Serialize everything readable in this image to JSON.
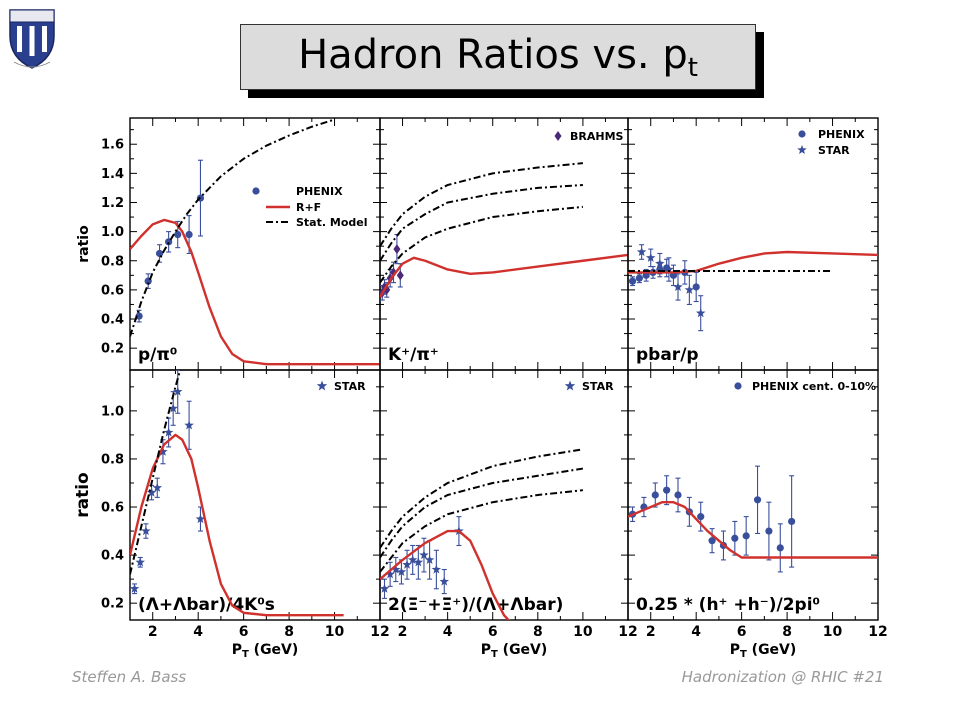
{
  "slide": {
    "title_main": "Hadron Ratios vs. p",
    "title_sub": "t",
    "footer_left": "Steffen A. Bass",
    "footer_right": "Hadronization @ RHIC  #21"
  },
  "colors": {
    "data_blue": "#3a4f9c",
    "rf_red": "#d0312d",
    "model_black": "#000000",
    "brahms_purple": "#4b2a7a",
    "title_bg": "#dcdcdc",
    "footer_gray": "#999999"
  },
  "chart_data": [
    {
      "type": "scatter",
      "panel_label": "p/π⁰",
      "ylabel": "ratio",
      "xlabel": "",
      "xlim": [
        1,
        12
      ],
      "ylim": [
        0.05,
        1.78
      ],
      "yticks": [
        0.2,
        0.4,
        0.6,
        0.8,
        1.0,
        1.2,
        1.4,
        1.6
      ],
      "legend": [
        "PHENIX",
        "R+F",
        "Stat. Model"
      ],
      "series": [
        {
          "name": "PHENIX",
          "marker": "circle",
          "x": [
            1.4,
            1.8,
            2.3,
            2.7,
            3.1,
            3.6,
            4.1
          ],
          "y": [
            0.42,
            0.66,
            0.85,
            0.93,
            0.98,
            0.98,
            1.23
          ],
          "err": [
            0.04,
            0.05,
            0.06,
            0.07,
            0.09,
            0.13,
            0.26
          ]
        },
        {
          "name": "R+F",
          "curve": true,
          "x": [
            1,
            1.5,
            2,
            2.5,
            3,
            3.3,
            3.7,
            4,
            4.5,
            5,
            5.5,
            6,
            7,
            8,
            10,
            12
          ],
          "y": [
            0.88,
            0.97,
            1.05,
            1.08,
            1.06,
            1.0,
            0.86,
            0.72,
            0.48,
            0.28,
            0.16,
            0.11,
            0.09,
            0.09,
            0.09,
            0.09
          ]
        },
        {
          "name": "Stat. Model",
          "curve": true,
          "x": [
            1,
            1.5,
            2,
            2.5,
            3,
            3.5,
            4,
            5,
            6,
            7,
            8,
            9,
            10
          ],
          "y": [
            0.28,
            0.52,
            0.72,
            0.87,
            1.0,
            1.12,
            1.22,
            1.38,
            1.5,
            1.59,
            1.66,
            1.72,
            1.77
          ]
        }
      ]
    },
    {
      "type": "scatter",
      "panel_label": "K⁺/π⁺",
      "xlabel": "",
      "xlim": [
        1,
        12
      ],
      "ylim": [
        0.05,
        1.78
      ],
      "legend": [
        "BRAHMS"
      ],
      "series": [
        {
          "name": "BRAHMS",
          "marker": "diamond",
          "x": [
            1.1,
            1.2,
            1.3,
            1.45,
            1.6,
            1.75,
            1.9
          ],
          "y": [
            0.58,
            0.62,
            0.6,
            0.68,
            0.72,
            0.88,
            0.7
          ],
          "err": [
            0.05,
            0.05,
            0.05,
            0.06,
            0.07,
            0.1,
            0.08
          ]
        },
        {
          "curve": true,
          "x": [
            1,
            1.5,
            2,
            2.5,
            3,
            4,
            5,
            6,
            8,
            10,
            12
          ],
          "y": [
            0.55,
            0.68,
            0.78,
            0.82,
            0.8,
            0.74,
            0.71,
            0.72,
            0.76,
            0.8,
            0.84
          ]
        },
        {
          "curve": true,
          "x": [
            1,
            1.5,
            2,
            3,
            4,
            6,
            8,
            10
          ],
          "y": [
            0.9,
            1.02,
            1.12,
            1.24,
            1.32,
            1.4,
            1.44,
            1.47
          ]
        },
        {
          "curve": true,
          "x": [
            1,
            1.5,
            2,
            3,
            4,
            6,
            8,
            10
          ],
          "y": [
            0.8,
            0.92,
            1.02,
            1.12,
            1.2,
            1.26,
            1.3,
            1.32
          ]
        },
        {
          "curve": true,
          "x": [
            1,
            1.5,
            2,
            3,
            4,
            6,
            8,
            10
          ],
          "y": [
            0.65,
            0.76,
            0.85,
            0.96,
            1.02,
            1.1,
            1.14,
            1.17
          ]
        }
      ]
    },
    {
      "type": "scatter",
      "panel_label": "pbar/p",
      "xlabel": "",
      "xlim": [
        1,
        12
      ],
      "ylim": [
        0.05,
        1.78
      ],
      "legend": [
        "PHENIX",
        "STAR"
      ],
      "series": [
        {
          "name": "PHENIX",
          "marker": "circle",
          "x": [
            1.2,
            1.5,
            1.8,
            2.1,
            2.4,
            2.7,
            3.0,
            3.5,
            4.0
          ],
          "y": [
            0.66,
            0.68,
            0.7,
            0.72,
            0.74,
            0.75,
            0.7,
            0.72,
            0.62
          ],
          "err": [
            0.03,
            0.03,
            0.04,
            0.04,
            0.05,
            0.06,
            0.07,
            0.08,
            0.1
          ]
        },
        {
          "name": "STAR",
          "marker": "star",
          "x": [
            1.6,
            2.0,
            2.4,
            2.8,
            3.2,
            3.7,
            4.2
          ],
          "y": [
            0.86,
            0.82,
            0.78,
            0.74,
            0.62,
            0.6,
            0.44
          ],
          "err": [
            0.05,
            0.06,
            0.07,
            0.08,
            0.09,
            0.1,
            0.12
          ]
        },
        {
          "curve": true,
          "x": [
            1,
            3,
            4,
            5,
            6,
            7,
            8,
            10,
            12
          ],
          "y": [
            0.72,
            0.72,
            0.73,
            0.78,
            0.82,
            0.85,
            0.86,
            0.85,
            0.84
          ]
        },
        {
          "curve": true,
          "x": [
            1,
            10
          ],
          "y": [
            0.73,
            0.73
          ]
        }
      ]
    },
    {
      "type": "scatter",
      "panel_label": "(Λ+Λbar)/4K⁰s",
      "ylabel": "ratio",
      "xlabel": "PT (GeV)",
      "xlim": [
        1,
        12
      ],
      "ylim": [
        0.13,
        1.17
      ],
      "yticks": [
        0.2,
        0.4,
        0.6,
        0.8,
        1.0
      ],
      "xticks": [
        2,
        4,
        6,
        8,
        10,
        12
      ],
      "legend": [
        "STAR"
      ],
      "series": [
        {
          "name": "STAR",
          "marker": "star",
          "x": [
            1.2,
            1.45,
            1.7,
            1.95,
            2.2,
            2.45,
            2.7,
            2.9,
            3.1,
            3.6,
            4.1
          ],
          "y": [
            0.26,
            0.37,
            0.5,
            0.66,
            0.68,
            0.83,
            0.91,
            1.01,
            1.08,
            0.94,
            0.55
          ],
          "err": [
            0.02,
            0.02,
            0.03,
            0.03,
            0.04,
            0.05,
            0.06,
            0.07,
            0.09,
            0.1,
            0.05
          ]
        },
        {
          "curve": true,
          "x": [
            1,
            1.5,
            2,
            2.5,
            3,
            3.3,
            3.7,
            4,
            4.5,
            5,
            5.5,
            6,
            7,
            9,
            10.4
          ],
          "y": [
            0.4,
            0.6,
            0.76,
            0.86,
            0.9,
            0.88,
            0.8,
            0.68,
            0.46,
            0.28,
            0.19,
            0.16,
            0.15,
            0.15,
            0.15
          ]
        },
        {
          "curve": true,
          "x": [
            1,
            1.5,
            2,
            2.5,
            3,
            3.3
          ],
          "y": [
            0.32,
            0.52,
            0.72,
            0.92,
            1.1,
            1.2
          ]
        }
      ]
    },
    {
      "type": "scatter",
      "panel_label": "2(Ξ⁻+Ξ⁺)/(Λ+Λbar)",
      "xlabel": "PT (GeV)",
      "xlim": [
        1,
        12
      ],
      "ylim": [
        0.13,
        1.17
      ],
      "xticks": [
        2,
        4,
        6,
        8,
        10,
        12
      ],
      "legend": [
        "STAR"
      ],
      "series": [
        {
          "name": "STAR",
          "marker": "star",
          "x": [
            1.2,
            1.45,
            1.7,
            1.95,
            2.2,
            2.45,
            2.7,
            2.95,
            3.2,
            3.5,
            3.85,
            4.5
          ],
          "y": [
            0.26,
            0.32,
            0.34,
            0.33,
            0.36,
            0.38,
            0.37,
            0.4,
            0.38,
            0.34,
            0.29,
            0.5
          ],
          "err": [
            0.04,
            0.05,
            0.05,
            0.05,
            0.06,
            0.06,
            0.07,
            0.07,
            0.08,
            0.08,
            0.05,
            0.06
          ]
        },
        {
          "curve": true,
          "x": [
            1,
            2,
            3,
            4,
            4.5,
            5,
            5.5,
            6,
            6.5,
            7,
            8,
            12
          ],
          "y": [
            0.3,
            0.38,
            0.45,
            0.5,
            0.5,
            0.46,
            0.36,
            0.24,
            0.15,
            0.1,
            0.1,
            0.1
          ]
        },
        {
          "curve": true,
          "x": [
            1,
            1.5,
            2,
            3,
            4,
            6,
            8,
            10
          ],
          "y": [
            0.43,
            0.5,
            0.56,
            0.64,
            0.7,
            0.77,
            0.81,
            0.84
          ]
        },
        {
          "curve": true,
          "x": [
            1,
            1.5,
            2,
            3,
            4,
            6,
            8,
            10
          ],
          "y": [
            0.39,
            0.46,
            0.52,
            0.6,
            0.65,
            0.7,
            0.73,
            0.76
          ]
        },
        {
          "curve": true,
          "x": [
            1,
            1.5,
            2,
            3,
            4,
            6,
            8,
            10
          ],
          "y": [
            0.33,
            0.39,
            0.45,
            0.52,
            0.57,
            0.62,
            0.65,
            0.67
          ]
        }
      ]
    },
    {
      "type": "scatter",
      "panel_label": "0.25 * (h⁺ +h⁻)/2pi⁰",
      "xlabel": "PT (GeV)",
      "xlim": [
        1,
        12
      ],
      "ylim": [
        0.13,
        1.17
      ],
      "xticks": [
        2,
        4,
        6,
        8,
        10,
        12
      ],
      "legend": [
        "PHENIX cent. 0-10%"
      ],
      "series": [
        {
          "name": "PHENIX cent. 0-10%",
          "marker": "circle",
          "x": [
            1.2,
            1.7,
            2.2,
            2.7,
            3.2,
            3.7,
            4.2,
            4.7,
            5.2,
            5.7,
            6.2,
            6.7,
            7.2,
            7.7,
            8.2
          ],
          "y": [
            0.57,
            0.6,
            0.65,
            0.67,
            0.65,
            0.58,
            0.56,
            0.46,
            0.44,
            0.47,
            0.48,
            0.63,
            0.5,
            0.43,
            0.54
          ],
          "err": [
            0.03,
            0.04,
            0.05,
            0.06,
            0.07,
            0.06,
            0.06,
            0.05,
            0.06,
            0.07,
            0.08,
            0.14,
            0.12,
            0.1,
            0.19
          ]
        },
        {
          "curve": true,
          "x": [
            1,
            1.5,
            2,
            2.5,
            3,
            3.5,
            4,
            4.5,
            5,
            5.5,
            6,
            7,
            8,
            10,
            12
          ],
          "y": [
            0.56,
            0.58,
            0.6,
            0.62,
            0.62,
            0.6,
            0.55,
            0.5,
            0.46,
            0.42,
            0.39,
            0.39,
            0.39,
            0.39,
            0.39
          ]
        }
      ]
    }
  ]
}
